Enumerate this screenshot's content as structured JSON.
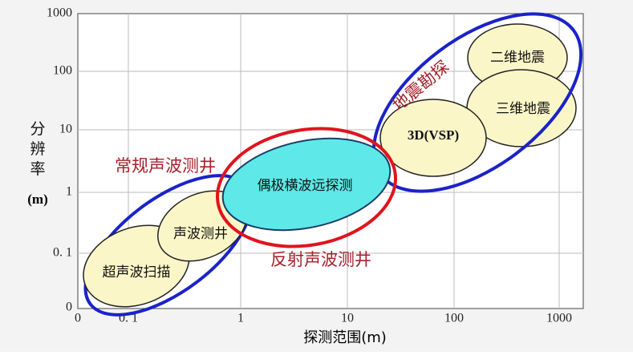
{
  "axes": {
    "y_title": "分辨率",
    "y_unit": "(m)",
    "x_title": "探测范围(m)",
    "y_ticks": [
      "1000",
      "100",
      "10",
      "1",
      "0. 1",
      "0"
    ],
    "x_ticks": [
      "0",
      "0. 1",
      "1",
      "10",
      "100",
      "1000"
    ]
  },
  "regions": [
    {
      "label": "超声波扫描"
    },
    {
      "label": "声波测井"
    },
    {
      "label": "偶极横波远探测"
    },
    {
      "label": "3D(VSP)"
    },
    {
      "label": "三维地震"
    },
    {
      "label": "二维地震"
    }
  ],
  "groups": [
    {
      "label": "常规声波测井"
    },
    {
      "label": "反射声波测井"
    },
    {
      "label": "地震勘探"
    }
  ]
}
